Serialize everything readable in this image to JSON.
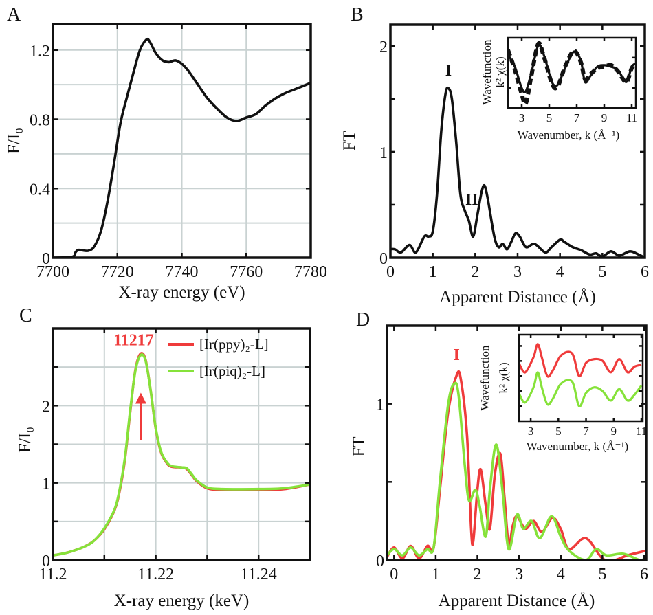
{
  "colors": {
    "black": "#111111",
    "red": "#ef3b3b",
    "green": "#86e23a",
    "grid": "#c9d2d2"
  },
  "chart_data": [
    {
      "panel": "A",
      "type": "line",
      "xlabel": "X-ray energy (eV)",
      "ylabel": "F/I₀",
      "xlim": [
        7700,
        7780
      ],
      "ylim": [
        0,
        1.35
      ],
      "grid": true,
      "xticks": [
        7700,
        7720,
        7740,
        7760,
        7780
      ],
      "xtick_labels": [
        "7700",
        "7720",
        "7740",
        "7760",
        "7780"
      ],
      "yticks": [
        0,
        0.4,
        0.8,
        1.2
      ],
      "ytick_labels": [
        "0",
        "0.4",
        "0.8",
        "1.2"
      ],
      "grid_x": [
        7720,
        7740,
        7760
      ],
      "grid_y": [
        0.2,
        0.4,
        0.6,
        0.8,
        1.0,
        1.2
      ],
      "series": [
        {
          "color": "#111111",
          "dash": false,
          "x": [
            7700,
            7706,
            7707,
            7708,
            7711,
            7713,
            7715,
            7717,
            7719,
            7721,
            7723,
            7725,
            7727,
            7729,
            7730,
            7732,
            7734,
            7736,
            7738,
            7740,
            7742,
            7745,
            7748,
            7751,
            7754,
            7757,
            7760,
            7763,
            7766,
            7769,
            7772,
            7776,
            7780
          ],
          "y": [
            0,
            0.005,
            0.03,
            0.045,
            0.04,
            0.07,
            0.16,
            0.33,
            0.55,
            0.78,
            0.93,
            1.07,
            1.2,
            1.26,
            1.25,
            1.18,
            1.14,
            1.13,
            1.14,
            1.12,
            1.08,
            1.0,
            0.92,
            0.86,
            0.81,
            0.79,
            0.81,
            0.83,
            0.88,
            0.92,
            0.95,
            0.98,
            1.01
          ]
        }
      ]
    },
    {
      "panel": "B",
      "type": "line",
      "xlabel": "Apparent Distance (Å)",
      "ylabel": "FT",
      "xlim": [
        0,
        6
      ],
      "ylim": [
        0,
        2.2
      ],
      "grid": false,
      "xticks": [
        0,
        1,
        2,
        3,
        4,
        5,
        6
      ],
      "xtick_labels": [
        "0",
        "1",
        "2",
        "3",
        "4",
        "5",
        "6"
      ],
      "yticks": [
        0,
        1,
        2
      ],
      "ytick_labels": [
        "0",
        "1",
        "2"
      ],
      "minor_yticks": [
        0.5,
        1.5
      ],
      "annotations": [
        {
          "text": "I",
          "x": 1.37,
          "y": 1.72,
          "color": "#111111"
        },
        {
          "text": "II",
          "x": 1.92,
          "y": 0.5,
          "color": "#111111"
        }
      ],
      "series": [
        {
          "color": "#111111",
          "dash": false,
          "x": [
            0,
            0.1,
            0.25,
            0.45,
            0.6,
            0.8,
            0.9,
            1.0,
            1.1,
            1.2,
            1.3,
            1.37,
            1.45,
            1.55,
            1.65,
            1.75,
            1.85,
            1.95,
            2.05,
            2.15,
            2.22,
            2.3,
            2.45,
            2.55,
            2.65,
            2.75,
            2.85,
            2.95,
            3.05,
            3.2,
            3.4,
            3.65,
            3.8,
            4.0,
            4.1,
            4.3,
            4.5,
            4.7,
            4.85,
            5.0,
            5.2,
            5.4,
            5.65,
            5.85,
            6.0
          ],
          "y": [
            0.08,
            0.08,
            0.05,
            0.12,
            0.05,
            0.2,
            0.2,
            0.25,
            0.6,
            1.2,
            1.55,
            1.6,
            1.5,
            1.1,
            0.6,
            0.45,
            0.35,
            0.2,
            0.4,
            0.62,
            0.68,
            0.55,
            0.2,
            0.1,
            0.13,
            0.08,
            0.15,
            0.23,
            0.2,
            0.1,
            0.13,
            0.05,
            0.1,
            0.17,
            0.15,
            0.1,
            0.07,
            0.03,
            0.04,
            0.01,
            0.06,
            0.02,
            0.06,
            0.03,
            0.0
          ]
        }
      ]
    },
    {
      "panel": "B-inset",
      "type": "line",
      "xlabel": "Wavenumber, k (Å⁻¹)",
      "ylabel": "Wavefunction",
      "ylabel2": "k² χ(k)",
      "xlim": [
        2,
        11.3
      ],
      "ylim": [
        -1.15,
        1.15
      ],
      "grid": false,
      "xticks": [
        3,
        5,
        7,
        9,
        11
      ],
      "xtick_labels": [
        "3",
        "5",
        "7",
        "9",
        "11"
      ],
      "yticks": [
        -0.5,
        0.5
      ],
      "ytick_labels": [],
      "series": [
        {
          "color": "#111111",
          "dash": false,
          "x": [
            2,
            2.5,
            3,
            3.3,
            3.7,
            4.2,
            4.6,
            5.2,
            5.6,
            6.2,
            6.8,
            7.3,
            7.6,
            8,
            8.5,
            9,
            9.5,
            10,
            10.6,
            11,
            11.3
          ],
          "y": [
            0.6,
            0.2,
            -0.5,
            -0.6,
            0.0,
            0.9,
            0.6,
            -0.3,
            -0.4,
            0.2,
            0.7,
            0.4,
            -0.3,
            -0.1,
            0.2,
            0.25,
            0.2,
            0.1,
            -0.3,
            0.2,
            0.3
          ]
        },
        {
          "color": "#111111",
          "dash": true,
          "x": [
            2,
            2.5,
            3,
            3.3,
            3.7,
            4.2,
            4.6,
            5.2,
            5.6,
            6.2,
            6.8,
            7.3,
            7.6,
            8,
            8.5,
            9,
            9.5,
            10,
            10.6,
            11,
            11.3
          ],
          "y": [
            0.75,
            0.1,
            -0.7,
            -1.0,
            -0.1,
            0.95,
            0.55,
            -0.35,
            -0.45,
            0.25,
            0.72,
            0.35,
            -0.2,
            -0.05,
            0.15,
            0.2,
            0.25,
            0.05,
            -0.3,
            0.15,
            0.3
          ]
        }
      ]
    },
    {
      "panel": "C",
      "type": "line",
      "xlabel": "X-ray energy (keV)",
      "ylabel": "F/I₀",
      "xlim": [
        11.2,
        11.25
      ],
      "ylim": [
        0,
        3
      ],
      "grid": true,
      "xticks": [
        11.2,
        11.22,
        11.24
      ],
      "xtick_labels": [
        "11.2",
        "11.22",
        "11.24"
      ],
      "yticks": [
        0,
        1,
        2
      ],
      "ytick_labels": [
        "0",
        "1",
        "2"
      ],
      "minor_xticks": [
        11.21,
        11.23
      ],
      "minor_yticks": [
        0.5,
        1.5,
        2.5
      ],
      "grid_x": [
        11.21,
        11.22,
        11.23,
        11.24
      ],
      "grid_y": [
        0.5,
        1,
        1.5,
        2,
        2.5
      ],
      "annotations": [
        {
          "text": "11217",
          "x": 11.2157,
          "y": 2.78,
          "color": "#ef3b3b"
        }
      ],
      "arrow": {
        "x": 11.2171,
        "y_from": 1.55,
        "y_to": 2.15,
        "color": "#ef3b3b"
      },
      "legend": [
        {
          "label": "[Ir(ppy)₂-L]",
          "color": "#ef3b3b"
        },
        {
          "label": "[Ir(piq)₂-L]",
          "color": "#86e23a"
        }
      ],
      "legend_position": "top-right",
      "series": [
        {
          "name": "[Ir(ppy)₂-L]",
          "color": "#ef3b3b",
          "dash": false,
          "x": [
            11.2,
            11.203,
            11.206,
            11.208,
            11.21,
            11.212,
            11.213,
            11.214,
            11.215,
            11.216,
            11.217,
            11.218,
            11.219,
            11.22,
            11.221,
            11.222,
            11.223,
            11.225,
            11.226,
            11.227,
            11.228,
            11.23,
            11.233,
            11.24,
            11.245,
            11.25
          ],
          "y": [
            0.06,
            0.1,
            0.17,
            0.25,
            0.4,
            0.65,
            0.9,
            1.3,
            1.9,
            2.45,
            2.67,
            2.6,
            2.2,
            1.7,
            1.4,
            1.27,
            1.21,
            1.2,
            1.18,
            1.1,
            1.02,
            0.93,
            0.91,
            0.91,
            0.92,
            0.98
          ]
        },
        {
          "name": "[Ir(piq)₂-L]",
          "color": "#86e23a",
          "dash": false,
          "x": [
            11.2,
            11.203,
            11.206,
            11.208,
            11.21,
            11.212,
            11.213,
            11.214,
            11.215,
            11.216,
            11.217,
            11.218,
            11.219,
            11.22,
            11.221,
            11.222,
            11.223,
            11.225,
            11.226,
            11.227,
            11.228,
            11.23,
            11.233,
            11.24,
            11.245,
            11.25
          ],
          "y": [
            0.06,
            0.1,
            0.17,
            0.25,
            0.41,
            0.66,
            0.92,
            1.32,
            1.92,
            2.44,
            2.65,
            2.59,
            2.2,
            1.71,
            1.41,
            1.28,
            1.22,
            1.2,
            1.19,
            1.11,
            1.03,
            0.94,
            0.92,
            0.92,
            0.93,
            0.98
          ]
        }
      ]
    },
    {
      "panel": "D",
      "type": "line",
      "xlabel": "Apparent Distance (Å)",
      "ylabel": "FT",
      "xlim": [
        -0.17,
        6.05
      ],
      "ylim": [
        0,
        1.5
      ],
      "grid": false,
      "xticks": [
        0,
        1,
        2,
        3,
        4,
        5,
        6
      ],
      "xtick_labels": [
        "0",
        "1",
        "2",
        "3",
        "4",
        "5",
        "6"
      ],
      "yticks": [
        0,
        1
      ],
      "ytick_labels": [
        "0",
        "1"
      ],
      "minor_yticks": [
        0.5
      ],
      "annotations": [
        {
          "text": "I",
          "x": 1.5,
          "y": 1.28,
          "color": "#ef3b3b"
        }
      ],
      "series": [
        {
          "color": "#ef3b3b",
          "dash": false,
          "x": [
            -0.17,
            0,
            0.2,
            0.4,
            0.6,
            0.8,
            0.95,
            1.1,
            1.3,
            1.5,
            1.6,
            1.75,
            1.85,
            1.9,
            2.0,
            2.08,
            2.2,
            2.3,
            2.42,
            2.55,
            2.65,
            2.75,
            2.85,
            2.95,
            3.15,
            3.35,
            3.55,
            3.8,
            4.0,
            4.2,
            4.6,
            5.0,
            5.3,
            5.6,
            6.05
          ],
          "y": [
            0.02,
            0.08,
            0.01,
            0.09,
            0.01,
            0.09,
            0.08,
            0.45,
            0.95,
            1.18,
            1.16,
            0.8,
            0.2,
            0.12,
            0.45,
            0.58,
            0.35,
            0.2,
            0.55,
            0.68,
            0.4,
            0.1,
            0.22,
            0.28,
            0.2,
            0.25,
            0.18,
            0.27,
            0.2,
            0.07,
            0.14,
            0.01,
            0.0,
            0.03,
            0.06
          ]
        },
        {
          "color": "#86e23a",
          "dash": false,
          "x": [
            -0.17,
            0,
            0.2,
            0.4,
            0.6,
            0.8,
            0.95,
            1.1,
            1.3,
            1.45,
            1.55,
            1.7,
            1.8,
            1.95,
            2.05,
            2.2,
            2.3,
            2.45,
            2.6,
            2.75,
            2.95,
            3.1,
            3.3,
            3.5,
            3.78,
            4.0,
            4.2,
            4.6,
            4.85,
            5.1,
            5.5,
            5.9,
            6.05
          ],
          "y": [
            0.03,
            0.07,
            0.03,
            0.08,
            0.03,
            0.07,
            0.08,
            0.5,
            1.0,
            1.13,
            1.05,
            0.6,
            0.38,
            0.45,
            0.35,
            0.15,
            0.45,
            0.74,
            0.45,
            0.07,
            0.29,
            0.2,
            0.25,
            0.14,
            0.28,
            0.15,
            0.06,
            0.0,
            0.07,
            0.03,
            0.04,
            0.0,
            0.02
          ]
        }
      ]
    },
    {
      "panel": "D-inset",
      "type": "line",
      "xlabel": "Wavenumber, k (Å⁻¹)",
      "ylabel": "Wavefunction",
      "ylabel2": "k² χ(k)",
      "xlim": [
        2.15,
        11.1
      ],
      "ylim": [
        -1.2,
        1.1
      ],
      "grid": false,
      "xticks": [
        3,
        5,
        7,
        9,
        11
      ],
      "xtick_labels": [
        "3",
        "5",
        "7",
        "9",
        "11"
      ],
      "yticks": [
        -0.8,
        -0.4,
        0,
        0.4,
        0.8
      ],
      "ytick_labels": [],
      "series": [
        {
          "color": "#ef3b3b",
          "dash": false,
          "x": [
            2.2,
            2.6,
            3.2,
            3.5,
            3.8,
            4.2,
            4.6,
            5.2,
            6,
            6.5,
            7,
            7.6,
            8.2,
            8.8,
            9.4,
            10,
            10.5,
            11
          ],
          "y": [
            0.3,
            0.1,
            0.5,
            0.85,
            0.5,
            0.0,
            0.15,
            0.55,
            0.6,
            0.0,
            0.35,
            0.45,
            0.4,
            0.1,
            0.45,
            0.1,
            0.25,
            0.3
          ]
        },
        {
          "color": "#86e23a",
          "dash": false,
          "x": [
            2.2,
            2.6,
            3.2,
            3.5,
            3.8,
            4.2,
            4.6,
            5.2,
            6,
            6.5,
            7,
            7.6,
            8.2,
            8.8,
            9.4,
            10,
            10.5,
            11
          ],
          "y": [
            -0.5,
            -0.7,
            -0.3,
            0.1,
            -0.3,
            -0.75,
            -0.6,
            -0.2,
            -0.15,
            -0.8,
            -0.45,
            -0.3,
            -0.4,
            -0.65,
            -0.35,
            -0.65,
            -0.5,
            -0.25
          ]
        }
      ]
    }
  ]
}
